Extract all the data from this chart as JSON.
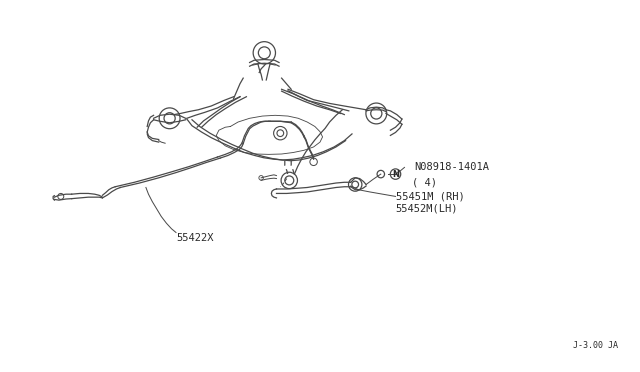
{
  "bg_color": "#ffffff",
  "line_color": "#4a4a4a",
  "text_color": "#2a2a2a",
  "fig_width": 6.4,
  "fig_height": 3.72,
  "dpi": 100,
  "labels": {
    "part1_code": "N08918-1401A",
    "part1_qty": "( 4)",
    "part2_code": "55451M (RH)",
    "part3_code": "55452M(LH)",
    "part4_code": "55422X",
    "corner_code": "J-3.00 JA"
  }
}
